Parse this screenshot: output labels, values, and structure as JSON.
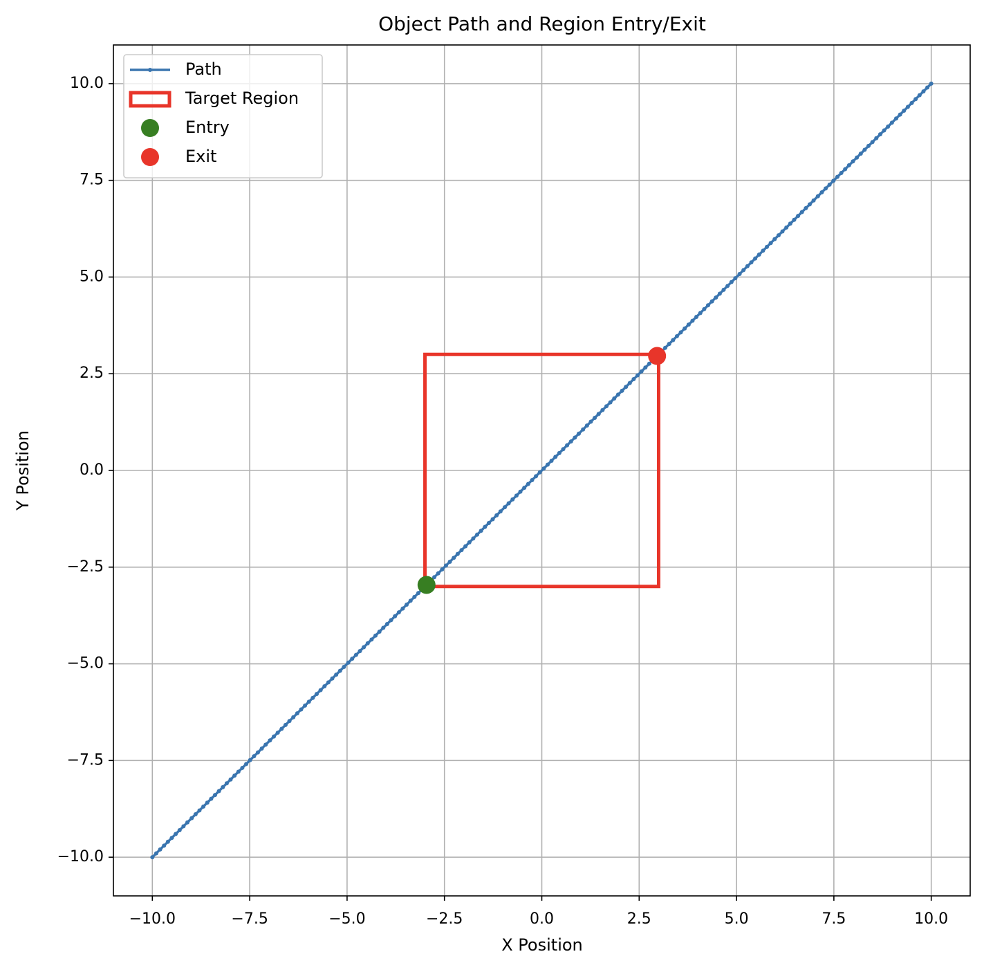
{
  "chart_data": {
    "type": "line",
    "title": "Object Path and Region Entry/Exit",
    "xlabel": "X Position",
    "ylabel": "Y Position",
    "xlim": [
      -11,
      11
    ],
    "ylim": [
      -11,
      11
    ],
    "xticks": [
      {
        "value": -10,
        "label": "−10.0"
      },
      {
        "value": -7.5,
        "label": "−7.5"
      },
      {
        "value": -5,
        "label": "−5.0"
      },
      {
        "value": -2.5,
        "label": "−2.5"
      },
      {
        "value": 0,
        "label": "0.0"
      },
      {
        "value": 2.5,
        "label": "2.5"
      },
      {
        "value": 5,
        "label": "5.0"
      },
      {
        "value": 7.5,
        "label": "7.5"
      },
      {
        "value": 10,
        "label": "10.0"
      }
    ],
    "yticks": [
      {
        "value": -10,
        "label": "−10.0"
      },
      {
        "value": -7.5,
        "label": "−7.5"
      },
      {
        "value": -5,
        "label": "−5.0"
      },
      {
        "value": -2.5,
        "label": "−2.5"
      },
      {
        "value": 0,
        "label": "0.0"
      },
      {
        "value": 2.5,
        "label": "2.5"
      },
      {
        "value": 5,
        "label": "5.0"
      },
      {
        "value": 7.5,
        "label": "7.5"
      },
      {
        "value": 10,
        "label": "10.0"
      }
    ],
    "grid": true,
    "legend": "upper left",
    "series": [
      {
        "name": "Path",
        "color": "#3a75af",
        "marker": true,
        "x": [
          -10.0,
          -9.9,
          -9.8,
          -9.7,
          -9.6,
          -9.5,
          -9.4,
          -9.3,
          -9.2,
          -9.1,
          -8.99,
          -8.89,
          -8.79,
          -8.69,
          -8.59,
          -8.49,
          -8.39,
          -8.29,
          -8.19,
          -8.09,
          -7.99,
          -7.89,
          -7.79,
          -7.69,
          -7.59,
          -7.49,
          -7.39,
          -7.29,
          -7.19,
          -7.09,
          -6.98,
          -6.88,
          -6.78,
          -6.68,
          -6.58,
          -6.48,
          -6.38,
          -6.28,
          -6.18,
          -6.08,
          -5.98,
          -5.88,
          -5.78,
          -5.68,
          -5.58,
          -5.48,
          -5.38,
          -5.28,
          -5.18,
          -5.08,
          -4.97,
          -4.87,
          -4.77,
          -4.67,
          -4.57,
          -4.47,
          -4.37,
          -4.27,
          -4.17,
          -4.07,
          -3.97,
          -3.87,
          -3.77,
          -3.67,
          -3.57,
          -3.47,
          -3.37,
          -3.27,
          -3.17,
          -3.07,
          -2.96,
          -2.86,
          -2.76,
          -2.66,
          -2.56,
          -2.46,
          -2.36,
          -2.26,
          -2.16,
          -2.06,
          -1.96,
          -1.86,
          -1.76,
          -1.66,
          -1.56,
          -1.46,
          -1.36,
          -1.26,
          -1.16,
          -1.06,
          -0.95,
          -0.85,
          -0.75,
          -0.65,
          -0.55,
          -0.45,
          -0.35,
          -0.25,
          -0.15,
          -0.05,
          0.05,
          0.15,
          0.25,
          0.35,
          0.45,
          0.55,
          0.65,
          0.75,
          0.85,
          0.95,
          1.06,
          1.16,
          1.26,
          1.36,
          1.46,
          1.56,
          1.66,
          1.76,
          1.86,
          1.96,
          2.06,
          2.16,
          2.26,
          2.36,
          2.46,
          2.56,
          2.66,
          2.76,
          2.86,
          2.96,
          3.07,
          3.17,
          3.27,
          3.37,
          3.47,
          3.57,
          3.67,
          3.77,
          3.87,
          3.97,
          4.07,
          4.17,
          4.27,
          4.37,
          4.47,
          4.57,
          4.67,
          4.77,
          4.87,
          4.97,
          5.08,
          5.18,
          5.28,
          5.38,
          5.48,
          5.58,
          5.68,
          5.78,
          5.88,
          5.98,
          6.08,
          6.18,
          6.28,
          6.38,
          6.48,
          6.58,
          6.68,
          6.78,
          6.88,
          6.98,
          7.09,
          7.19,
          7.29,
          7.39,
          7.49,
          7.59,
          7.69,
          7.79,
          7.89,
          7.99,
          8.09,
          8.19,
          8.29,
          8.39,
          8.49,
          8.59,
          8.69,
          8.79,
          8.89,
          8.99,
          9.1,
          9.2,
          9.3,
          9.4,
          9.5,
          9.6,
          9.7,
          9.8,
          9.9,
          10.0
        ],
        "y": [
          -10.0,
          -9.9,
          -9.8,
          -9.7,
          -9.6,
          -9.5,
          -9.4,
          -9.3,
          -9.2,
          -9.1,
          -8.99,
          -8.89,
          -8.79,
          -8.69,
          -8.59,
          -8.49,
          -8.39,
          -8.29,
          -8.19,
          -8.09,
          -7.99,
          -7.89,
          -7.79,
          -7.69,
          -7.59,
          -7.49,
          -7.39,
          -7.29,
          -7.19,
          -7.09,
          -6.98,
          -6.88,
          -6.78,
          -6.68,
          -6.58,
          -6.48,
          -6.38,
          -6.28,
          -6.18,
          -6.08,
          -5.98,
          -5.88,
          -5.78,
          -5.68,
          -5.58,
          -5.48,
          -5.38,
          -5.28,
          -5.18,
          -5.08,
          -4.97,
          -4.87,
          -4.77,
          -4.67,
          -4.57,
          -4.47,
          -4.37,
          -4.27,
          -4.17,
          -4.07,
          -3.97,
          -3.87,
          -3.77,
          -3.67,
          -3.57,
          -3.47,
          -3.37,
          -3.27,
          -3.17,
          -3.07,
          -2.96,
          -2.86,
          -2.76,
          -2.66,
          -2.56,
          -2.46,
          -2.36,
          -2.26,
          -2.16,
          -2.06,
          -1.96,
          -1.86,
          -1.76,
          -1.66,
          -1.56,
          -1.46,
          -1.36,
          -1.26,
          -1.16,
          -1.06,
          -0.95,
          -0.85,
          -0.75,
          -0.65,
          -0.55,
          -0.45,
          -0.35,
          -0.25,
          -0.15,
          -0.05,
          0.05,
          0.15,
          0.25,
          0.35,
          0.45,
          0.55,
          0.65,
          0.75,
          0.85,
          0.95,
          1.06,
          1.16,
          1.26,
          1.36,
          1.46,
          1.56,
          1.66,
          1.76,
          1.86,
          1.96,
          2.06,
          2.16,
          2.26,
          2.36,
          2.46,
          2.56,
          2.66,
          2.76,
          2.86,
          2.96,
          3.07,
          3.17,
          3.27,
          3.37,
          3.47,
          3.57,
          3.67,
          3.77,
          3.87,
          3.97,
          4.07,
          4.17,
          4.27,
          4.37,
          4.47,
          4.57,
          4.67,
          4.77,
          4.87,
          4.97,
          5.08,
          5.18,
          5.28,
          5.38,
          5.48,
          5.58,
          5.68,
          5.78,
          5.88,
          5.98,
          6.08,
          6.18,
          6.28,
          6.38,
          6.48,
          6.58,
          6.68,
          6.78,
          6.88,
          6.98,
          7.09,
          7.19,
          7.29,
          7.39,
          7.49,
          7.59,
          7.69,
          7.79,
          7.89,
          7.99,
          8.09,
          8.19,
          8.29,
          8.39,
          8.49,
          8.59,
          8.69,
          8.79,
          8.89,
          8.99,
          9.1,
          9.2,
          9.3,
          9.4,
          9.5,
          9.6,
          9.7,
          9.8,
          9.9,
          10.0
        ]
      }
    ],
    "region": {
      "name": "Target Region",
      "color": "#e8352a",
      "x": [
        -3,
        3
      ],
      "y": [
        -3,
        3
      ]
    },
    "points": [
      {
        "name": "Entry",
        "color": "#377e22",
        "x": -2.96,
        "y": -2.96
      },
      {
        "name": "Exit",
        "color": "#e8352a",
        "x": 2.96,
        "y": 2.96
      }
    ]
  }
}
